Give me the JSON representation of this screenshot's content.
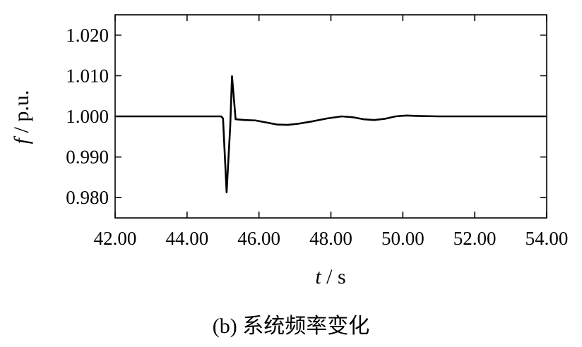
{
  "chart_data": {
    "type": "line",
    "title": "",
    "caption": "(b)  系统频率变化",
    "xlabel": {
      "var": "t",
      "unit": " / s"
    },
    "ylabel": {
      "var": "f",
      "unit": " / p.u."
    },
    "xlim": [
      42.0,
      54.0
    ],
    "ylim": [
      0.975,
      1.025
    ],
    "xticks": [
      42.0,
      44.0,
      46.0,
      48.0,
      50.0,
      52.0,
      54.0
    ],
    "xtick_labels": [
      "42.00",
      "44.00",
      "46.00",
      "48.00",
      "50.00",
      "52.00",
      "54.00"
    ],
    "yticks": [
      0.98,
      0.99,
      1.0,
      1.01,
      1.02
    ],
    "ytick_labels": [
      "0.980",
      "0.990",
      "1.000",
      "1.010",
      "1.020"
    ],
    "grid": false,
    "line_color": "#000000",
    "series": [
      {
        "x": [
          42.0,
          44.0,
          44.95,
          45.0,
          45.1,
          45.2,
          45.25,
          45.35,
          45.6,
          45.9,
          46.2,
          46.5,
          46.8,
          47.1,
          47.5,
          47.9,
          48.3,
          48.6,
          48.9,
          49.2,
          49.5,
          49.8,
          50.1,
          50.4,
          51.0,
          52.0,
          54.0
        ],
        "y": [
          1.0,
          1.0,
          1.0,
          0.9995,
          0.9813,
          0.9975,
          1.0099,
          0.9993,
          0.9991,
          0.999,
          0.9985,
          0.998,
          0.9979,
          0.9982,
          0.9988,
          0.9995,
          1.0,
          0.9998,
          0.9993,
          0.9991,
          0.9994,
          1.0,
          1.0002,
          1.0001,
          1.0,
          1.0,
          1.0
        ]
      }
    ]
  }
}
